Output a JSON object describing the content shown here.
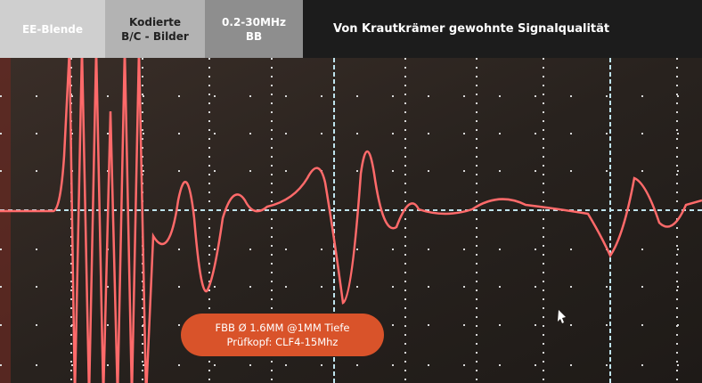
{
  "tabs": [
    [
      "EE-Blende"
    ],
    [
      "Kodierte",
      "B/C - Bilder"
    ],
    [
      "0.2-30MHz",
      "BB"
    ]
  ],
  "heading": "Von Krautkrämer gewohnte Signalqualität",
  "caption": [
    "FBB Ø 1.6MM @1MM Tiefe",
    "Prüfkopf: CLF4-15Mhz"
  ]
}
